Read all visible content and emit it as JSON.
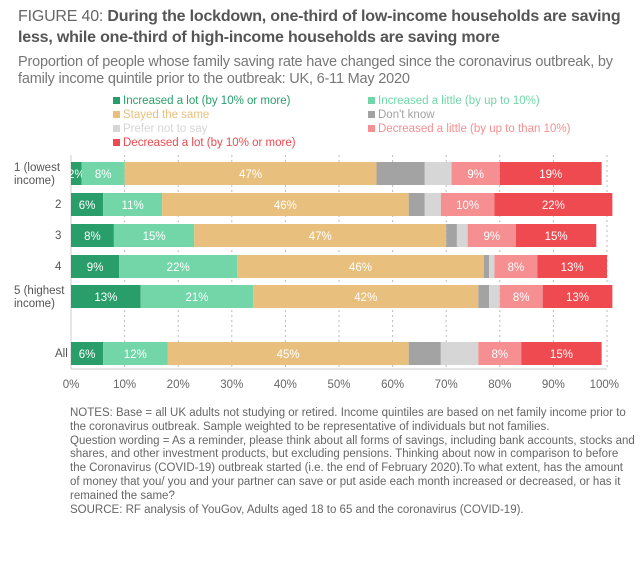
{
  "title_prefix": "FIGURE 40: ",
  "title_bold": "During the lockdown, one-third of low-income households are saving less, while one-third of high-income households are saving more",
  "subtitle": "Proportion of people whose family saving rate have changed since the coronavirus outbreak, by family income quintile prior to the outbreak: UK, 6-11 May 2020",
  "notes": [
    "NOTES: Base = all UK adults not studying or retired. Income quintiles are based on net family income prior to the coronavirus outbreak. Sample weighted to be representative of individuals but not families.",
    "Question wording = As a reminder, please think about all forms of savings, including bank accounts, stocks and shares, and other investment products, but excluding pensions. Thinking about now in comparison to before the Coronavirus (COVID-19) outbreak started (i.e. the end of February 2020).To what extent, has the amount of money that you/ you and your partner can save or put aside each month increased or decreased, or has it remained the same?",
    "SOURCE: RF analysis of YouGov, Adults aged 18 to 65 and the coronavirus (COVID-19)."
  ],
  "chart_data": {
    "type": "bar",
    "orientation": "horizontal-stacked",
    "categories": [
      "1 (lowest income)",
      "2",
      "3",
      "4",
      "5 (highest income)",
      "All"
    ],
    "series": [
      {
        "name": "Increased a lot (by 10% or more)",
        "color": "#2a9e6a",
        "values": [
          2,
          6,
          8,
          9,
          13,
          6
        ]
      },
      {
        "name": "Increased a little (by up to 10%)",
        "color": "#72d6a8",
        "values": [
          8,
          11,
          15,
          22,
          21,
          12
        ]
      },
      {
        "name": "Stayed the same",
        "color": "#e8bf7c",
        "values": [
          47,
          46,
          47,
          46,
          42,
          45
        ]
      },
      {
        "name": "Don't know",
        "color": "#a3a3a3",
        "values": [
          9,
          3,
          2,
          1,
          2,
          6
        ]
      },
      {
        "name": "Prefer not to say",
        "color": "#d6d6d6",
        "values": [
          5,
          3,
          2,
          1,
          2,
          7
        ]
      },
      {
        "name": "Decreased a little (by up to than 10%)",
        "color": "#f58f91",
        "values": [
          9,
          10,
          9,
          8,
          8,
          8
        ]
      },
      {
        "name": "Decreased a lot (by 10% or more)",
        "color": "#ee4a4f",
        "values": [
          19,
          22,
          15,
          13,
          13,
          15
        ]
      }
    ],
    "labeled": [
      [
        true,
        true,
        true,
        false,
        false,
        true,
        true
      ],
      [
        true,
        true,
        true,
        false,
        false,
        true,
        true
      ],
      [
        true,
        true,
        true,
        false,
        false,
        true,
        true
      ],
      [
        true,
        true,
        true,
        false,
        false,
        true,
        true
      ],
      [
        true,
        true,
        true,
        false,
        false,
        true,
        true
      ],
      [
        true,
        true,
        true,
        false,
        false,
        true,
        true
      ]
    ],
    "xlim": [
      0,
      100
    ],
    "xticks": [
      "0%",
      "10%",
      "20%",
      "30%",
      "40%",
      "50%",
      "60%",
      "70%",
      "80%",
      "90%",
      "100%"
    ],
    "grid": "vertical dashed",
    "legend": "top"
  }
}
